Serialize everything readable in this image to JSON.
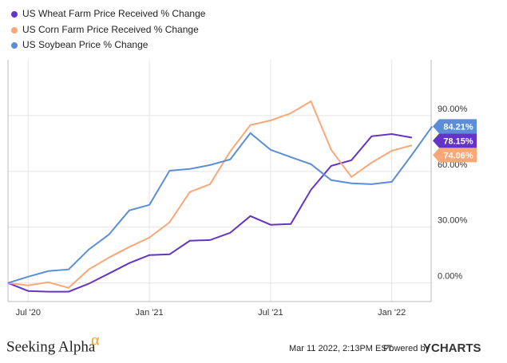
{
  "chart_data": {
    "type": "line",
    "x": [
      "2020-06",
      "2020-07",
      "2020-08",
      "2020-09",
      "2020-10",
      "2020-11",
      "2020-12",
      "2021-01",
      "2021-02",
      "2021-03",
      "2021-04",
      "2021-05",
      "2021-06",
      "2021-07",
      "2021-08",
      "2021-09",
      "2021-10",
      "2021-11",
      "2021-12",
      "2022-01",
      "2022-02",
      "2022-03"
    ],
    "series": [
      {
        "name": "US Wheat Farm Price Received % Change",
        "color": "#6434c4",
        "values": [
          0,
          -4.3,
          -4.7,
          -4.7,
          -0.4,
          5.1,
          10.7,
          15,
          15.4,
          22.7,
          23.1,
          27,
          36,
          31.3,
          31.7,
          50.1,
          63,
          66,
          78.9,
          80.1,
          78.15,
          null
        ],
        "value_labels": [
          null,
          null,
          null,
          null,
          null,
          null,
          null,
          null,
          null,
          null,
          null,
          null,
          null,
          null,
          null,
          null,
          null,
          null,
          null,
          null,
          "78.15%",
          null
        ]
      },
      {
        "name": "US Corn Farm Price Received % Change",
        "color": "#f8a878",
        "values": [
          0,
          -1.3,
          0.4,
          -2.6,
          7.3,
          13.7,
          19.3,
          24.4,
          32.6,
          48.9,
          53.1,
          70.7,
          84.9,
          87.4,
          91.3,
          97.7,
          71.6,
          57,
          64.7,
          71.1,
          74.06,
          null
        ],
        "value_labels": [
          null,
          null,
          null,
          null,
          null,
          null,
          null,
          null,
          null,
          null,
          null,
          null,
          null,
          null,
          null,
          null,
          null,
          null,
          null,
          null,
          "74.06%",
          null
        ]
      },
      {
        "name": "US Soybean Price % Change",
        "color": "#5b8ed8",
        "values": [
          0,
          3.4,
          6.4,
          7.3,
          18,
          26.1,
          39,
          42,
          60.4,
          61.3,
          63.4,
          66.4,
          80.6,
          71.6,
          67.7,
          63.9,
          55.3,
          53.6,
          53.1,
          54.4,
          69,
          84.21
        ],
        "value_labels": [
          null,
          null,
          null,
          null,
          null,
          null,
          null,
          null,
          null,
          null,
          null,
          null,
          null,
          null,
          null,
          null,
          null,
          null,
          null,
          null,
          null,
          "84.21%"
        ]
      }
    ],
    "xticks": [
      {
        "value": "2020-07",
        "label": "Jul '20"
      },
      {
        "value": "2021-01",
        "label": "Jan '21"
      },
      {
        "value": "2021-07",
        "label": "Jul '21"
      },
      {
        "value": "2022-01",
        "label": "Jan '22"
      }
    ],
    "ylim": [
      -10,
      120
    ],
    "yticks": [
      {
        "value": 0,
        "label": "0.00%"
      },
      {
        "value": 30,
        "label": "30.00%"
      },
      {
        "value": 60,
        "label": "60.00%"
      },
      {
        "value": 90,
        "label": "90.00%"
      }
    ],
    "grid": true
  },
  "footer": {
    "brand": "Seeking Alpha",
    "logo": "α",
    "timestamp": "Mar 11 2022, 2:13PM EST.",
    "powered": "Powered by",
    "source": "YCHARTS"
  }
}
